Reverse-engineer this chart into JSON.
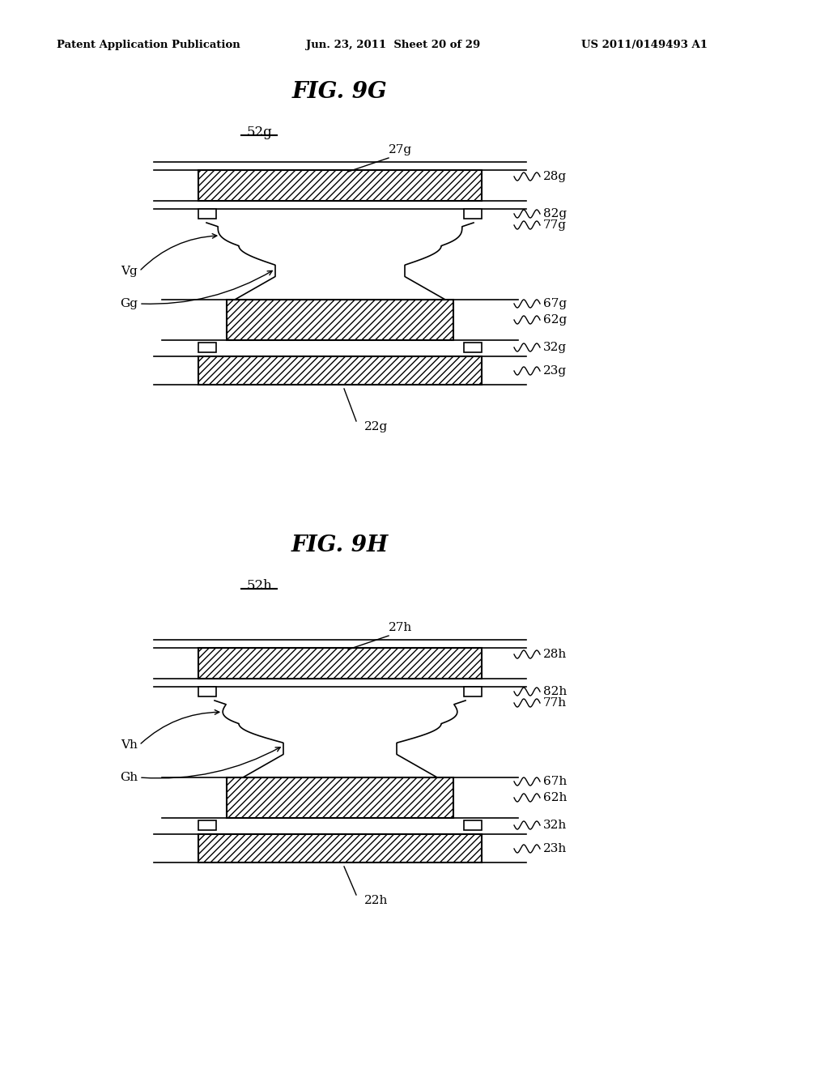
{
  "bg_color": "#ffffff",
  "header_left": "Patent Application Publication",
  "header_center": "Jun. 23, 2011  Sheet 20 of 29",
  "header_right": "US 2011/0149493 A1",
  "fig1_title": "FIG. 9G",
  "fig1_label": "52g",
  "fig2_title": "FIG. 9H",
  "fig2_label": "52h",
  "line_color": "#000000"
}
